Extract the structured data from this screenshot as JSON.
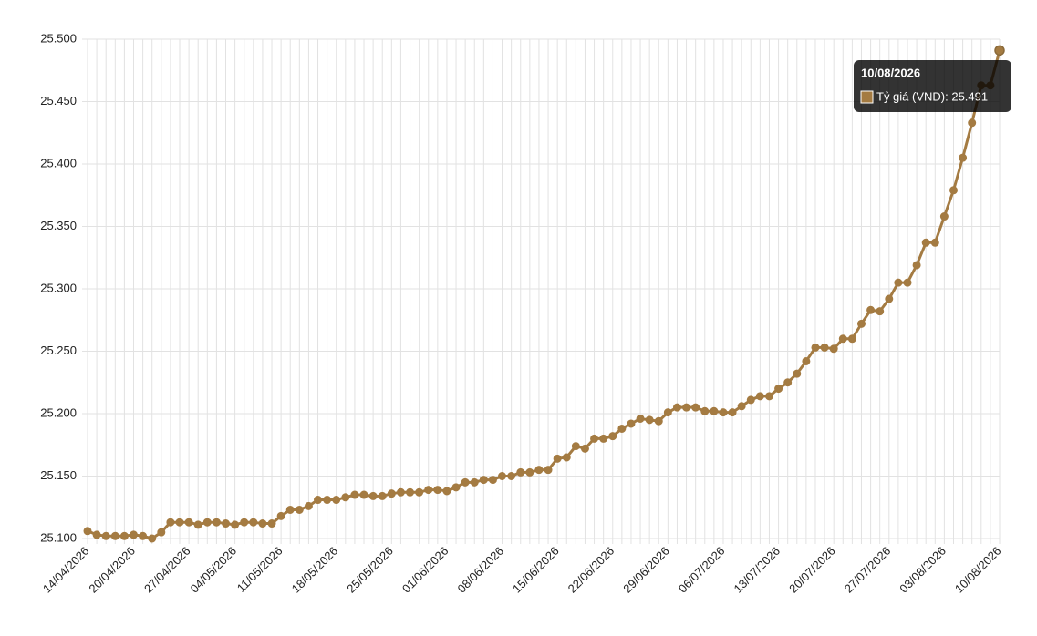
{
  "chart_data": {
    "type": "line",
    "categories": [
      "14/04/2026",
      null,
      null,
      null,
      null,
      "20/04/2026",
      null,
      null,
      null,
      null,
      null,
      "27/04/2026",
      null,
      null,
      null,
      null,
      "04/05/2026",
      null,
      null,
      null,
      null,
      "11/05/2026",
      null,
      null,
      null,
      null,
      null,
      "18/05/2026",
      null,
      null,
      null,
      null,
      null,
      "25/05/2026",
      null,
      null,
      null,
      null,
      null,
      "01/06/2026",
      null,
      null,
      null,
      null,
      null,
      "08/06/2026",
      null,
      null,
      null,
      null,
      null,
      "15/06/2026",
      null,
      null,
      null,
      null,
      null,
      "22/06/2026",
      null,
      null,
      null,
      null,
      null,
      "29/06/2026",
      null,
      null,
      null,
      null,
      null,
      "06/07/2026",
      null,
      null,
      null,
      null,
      null,
      "13/07/2026",
      null,
      null,
      null,
      null,
      null,
      "20/07/2026",
      null,
      null,
      null,
      null,
      null,
      "27/07/2026",
      null,
      null,
      null,
      null,
      null,
      "03/08/2026",
      null,
      null,
      null,
      null,
      null,
      "10/08/2026"
    ],
    "series": [
      {
        "name": "Tỷ giá (VND)",
        "color": "#a47b42",
        "values": [
          25106,
          25103,
          25102,
          25102,
          25102,
          25103,
          25102,
          25100,
          25105,
          25113,
          25113,
          25113,
          25111,
          25113,
          25113,
          25112,
          25111,
          25113,
          25113,
          25112,
          25112,
          25118,
          25123,
          25123,
          25126,
          25131,
          25131,
          25131,
          25133,
          25135,
          25135,
          25134,
          25134,
          25136,
          25137,
          25137,
          25137,
          25139,
          25139,
          25138,
          25141,
          25145,
          25145,
          25147,
          25147,
          25150,
          25150,
          25153,
          25153,
          25155,
          25155,
          25164,
          25165,
          25174,
          25172,
          25180,
          25180,
          25182,
          25188,
          25192,
          25196,
          25195,
          25194,
          25201,
          25205,
          25205,
          25205,
          25202,
          25202,
          25201,
          25201,
          25206,
          25211,
          25214,
          25214,
          25220,
          25225,
          25232,
          25242,
          25253,
          25253,
          25252,
          25260,
          25260,
          25272,
          25283,
          25282,
          25292,
          25305,
          25305,
          25319,
          25337,
          25337,
          25358,
          25379,
          25405,
          25433,
          25463,
          25463,
          25491
        ]
      }
    ],
    "ylim": [
      25100,
      25500
    ],
    "yticks": [
      {
        "value": 25100,
        "label": "25.100"
      },
      {
        "value": 25150,
        "label": "25.150"
      },
      {
        "value": 25200,
        "label": "25.200"
      },
      {
        "value": 25250,
        "label": "25.250"
      },
      {
        "value": 25300,
        "label": "25.300"
      },
      {
        "value": 25350,
        "label": "25.350"
      },
      {
        "value": 25400,
        "label": "25.400"
      },
      {
        "value": 25450,
        "label": "25.450"
      },
      {
        "value": 25500,
        "label": "25.500"
      }
    ],
    "grid": true,
    "tooltip": {
      "title": "10/08/2026",
      "label": "Tỷ giá (VND): 25.491"
    }
  }
}
